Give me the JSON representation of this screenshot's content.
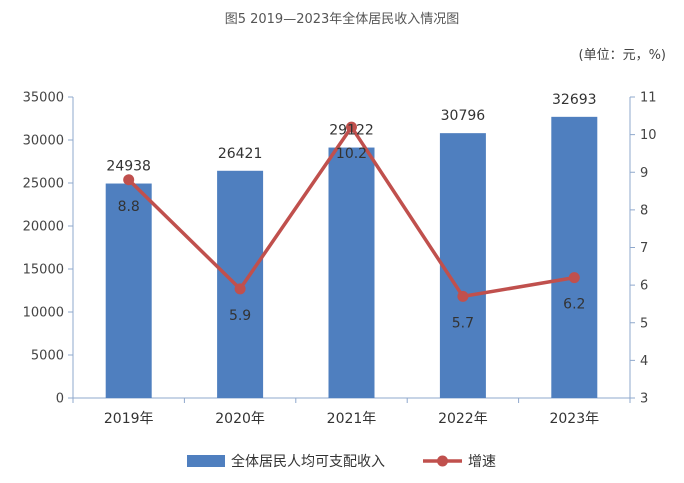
{
  "title": "图5  2019—2023年全体居民收入情况图",
  "unit": "(单位：元，%)",
  "chart_data": {
    "type": "bar+line",
    "categories": [
      "2019年",
      "2020年",
      "2021年",
      "2022年",
      "2023年"
    ],
    "series": [
      {
        "name": "全体居民人均可支配收入",
        "type": "bar",
        "axis": "left",
        "values": [
          24938,
          26421,
          29122,
          30796,
          32693
        ]
      },
      {
        "name": "增速",
        "type": "line",
        "axis": "right",
        "values": [
          8.8,
          5.9,
          10.2,
          5.7,
          6.2
        ]
      }
    ],
    "y_left": {
      "min": 0,
      "max": 35000,
      "step": 5000,
      "ticks": [
        "0",
        "5000",
        "10000",
        "15000",
        "20000",
        "25000",
        "30000",
        "35000"
      ]
    },
    "y_right": {
      "min": 3,
      "max": 11,
      "step": 1,
      "ticks": [
        "3",
        "4",
        "5",
        "6",
        "7",
        "8",
        "9",
        "10",
        "11"
      ]
    },
    "grid": false,
    "legend_position": "bottom",
    "colors": {
      "bar": "#4f7fbf",
      "line": "#c0504d",
      "axis": "#8fa8cc"
    }
  }
}
